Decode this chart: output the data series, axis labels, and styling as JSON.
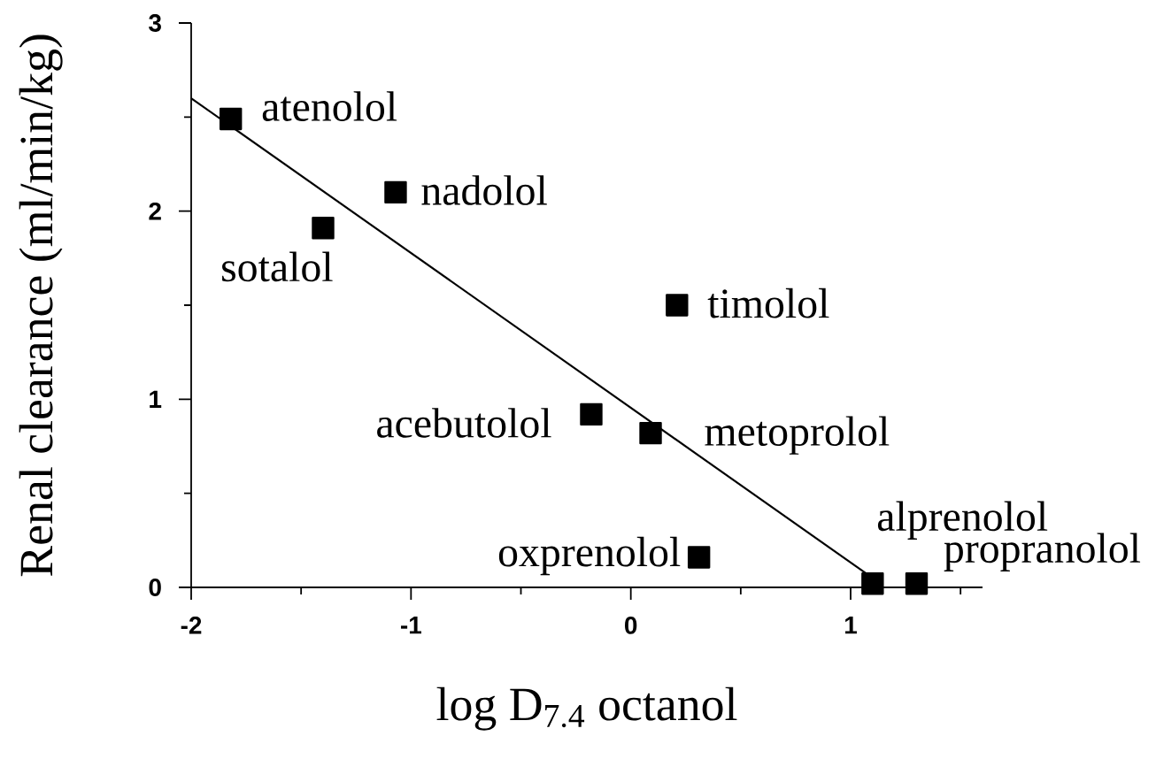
{
  "chart_data": {
    "type": "scatter",
    "xlabel": "log D$_{7.4}$ octanol",
    "ylabel": "Renal clearance (ml/min/kg)",
    "xlim": [
      -2,
      1.6
    ],
    "ylim": [
      0,
      3
    ],
    "xticks": [
      -2,
      {
        "value": -1.5,
        "label": null
      },
      -1,
      {
        "value": -0.5,
        "label": null
      },
      0,
      {
        "value": 0.5,
        "label": null
      },
      1,
      {
        "value": 1.5,
        "label": null
      }
    ],
    "yticks": [
      0,
      {
        "value": 0.5,
        "label": null
      },
      1,
      {
        "value": 1.5,
        "label": null
      },
      2,
      {
        "value": 2.5,
        "label": null
      },
      3
    ],
    "marker": "square",
    "series": [
      {
        "color": "#000000",
        "x": [
          -1.82,
          -1.07,
          -1.4,
          0.21,
          -0.18,
          0.09,
          0.31,
          1.1,
          1.3
        ],
        "values": [
          2.49,
          2.1,
          1.91,
          1.5,
          0.92,
          0.82,
          0.16,
          0.02,
          0.02
        ]
      },
      {
        "type": "line",
        "color": "#000000",
        "marker": "none",
        "x": [
          -2,
          1.1
        ],
        "values": [
          2.6,
          0.05
        ]
      }
    ],
    "annotations": [
      {
        "text": "atenolol",
        "x": -1.82,
        "y": 2.49
      },
      {
        "text": "nadolol",
        "x": -1.07,
        "y": 2.1
      },
      {
        "text": "sotalol",
        "x": -1.4,
        "y": 1.91
      },
      {
        "text": "timolol",
        "x": 0.21,
        "y": 1.5
      },
      {
        "text": "acebutolol",
        "x": -0.18,
        "y": 0.92
      },
      {
        "text": "metoprolol",
        "x": 0.09,
        "y": 0.82
      },
      {
        "text": "oxprenolol",
        "x": 0.31,
        "y": 0.16
      },
      {
        "text": "alprenolol",
        "x": 1.1,
        "y": 0.02
      },
      {
        "text": "propranolol",
        "x": 1.3,
        "y": 0.02
      }
    ]
  }
}
